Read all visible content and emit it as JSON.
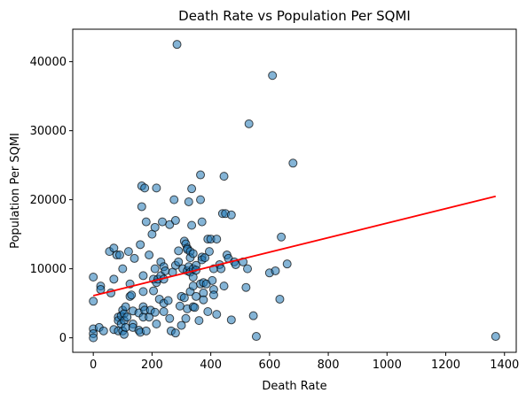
{
  "chart_data": {
    "type": "scatter",
    "title": "Death Rate vs Population Per SQMI",
    "xlabel": "Death Rate",
    "ylabel": "Population Per SQMI",
    "xlim": [
      -70,
      1440
    ],
    "ylim": [
      -2100,
      44700
    ],
    "xticks": [
      0,
      200,
      400,
      600,
      800,
      1000,
      1200,
      1400
    ],
    "yticks": [
      0,
      10000,
      20000,
      30000,
      40000
    ],
    "grid": false,
    "legend": "none",
    "colors": {
      "points": "#1f77b4",
      "point_edge": "#000000",
      "trend": "#ff0000"
    },
    "series": [
      {
        "kind": "points",
        "points": [
          [
            0,
            8800
          ],
          [
            0,
            5300
          ],
          [
            0,
            1300
          ],
          [
            0,
            600
          ],
          [
            0,
            0
          ],
          [
            20,
            1500
          ],
          [
            25,
            7500
          ],
          [
            25,
            7000
          ],
          [
            35,
            1000
          ],
          [
            55,
            12500
          ],
          [
            60,
            6500
          ],
          [
            70,
            8500
          ],
          [
            70,
            1200
          ],
          [
            70,
            13000
          ],
          [
            80,
            12000
          ],
          [
            85,
            3000
          ],
          [
            85,
            2500
          ],
          [
            85,
            1000
          ],
          [
            90,
            12000
          ],
          [
            95,
            3200
          ],
          [
            95,
            2000
          ],
          [
            100,
            10000
          ],
          [
            100,
            4000
          ],
          [
            100,
            1000
          ],
          [
            105,
            3500
          ],
          [
            105,
            2500
          ],
          [
            105,
            500
          ],
          [
            110,
            4500
          ],
          [
            110,
            1500
          ],
          [
            115,
            3000
          ],
          [
            120,
            12500
          ],
          [
            125,
            7800
          ],
          [
            125,
            6000
          ],
          [
            130,
            6200
          ],
          [
            135,
            3900
          ],
          [
            135,
            2000
          ],
          [
            135,
            1500
          ],
          [
            140,
            11500
          ],
          [
            155,
            3600
          ],
          [
            155,
            1100
          ],
          [
            160,
            13500
          ],
          [
            160,
            800
          ],
          [
            165,
            19000
          ],
          [
            165,
            22000
          ],
          [
            170,
            9000
          ],
          [
            170,
            6700
          ],
          [
            170,
            4500
          ],
          [
            170,
            3000
          ],
          [
            175,
            21700
          ],
          [
            175,
            4000
          ],
          [
            180,
            16800
          ],
          [
            180,
            1000
          ],
          [
            190,
            12000
          ],
          [
            190,
            3000
          ],
          [
            195,
            4000
          ],
          [
            200,
            15000
          ],
          [
            205,
            6800
          ],
          [
            205,
            8500
          ],
          [
            210,
            16000
          ],
          [
            210,
            10000
          ],
          [
            210,
            3700
          ],
          [
            215,
            21700
          ],
          [
            215,
            8000
          ],
          [
            215,
            2000
          ],
          [
            220,
            8500
          ],
          [
            225,
            5600
          ],
          [
            230,
            11000
          ],
          [
            230,
            9000
          ],
          [
            235,
            16800
          ],
          [
            240,
            10300
          ],
          [
            240,
            8500
          ],
          [
            240,
            5000
          ],
          [
            240,
            3800
          ],
          [
            245,
            9700
          ],
          [
            255,
            5400
          ],
          [
            260,
            16400
          ],
          [
            260,
            2800
          ],
          [
            265,
            1000
          ],
          [
            270,
            9500
          ],
          [
            275,
            20000
          ],
          [
            280,
            17000
          ],
          [
            280,
            10500
          ],
          [
            280,
            700
          ],
          [
            285,
            42500
          ],
          [
            290,
            12600
          ],
          [
            290,
            11000
          ],
          [
            295,
            4600
          ],
          [
            300,
            6000
          ],
          [
            300,
            1800
          ],
          [
            305,
            10000
          ],
          [
            310,
            14000
          ],
          [
            310,
            5800
          ],
          [
            315,
            13600
          ],
          [
            315,
            2800
          ],
          [
            320,
            13000
          ],
          [
            320,
            12800
          ],
          [
            320,
            9700
          ],
          [
            320,
            4200
          ],
          [
            325,
            19700
          ],
          [
            325,
            10300
          ],
          [
            330,
            12500
          ],
          [
            330,
            11600
          ],
          [
            330,
            9500
          ],
          [
            330,
            6700
          ],
          [
            335,
            21600
          ],
          [
            335,
            16300
          ],
          [
            340,
            12200
          ],
          [
            340,
            10000
          ],
          [
            340,
            8800
          ],
          [
            340,
            7500
          ],
          [
            340,
            4500
          ],
          [
            345,
            4400
          ],
          [
            350,
            10500
          ],
          [
            350,
            9800
          ],
          [
            350,
            6000
          ],
          [
            360,
            2500
          ],
          [
            365,
            23600
          ],
          [
            365,
            20000
          ],
          [
            365,
            7800
          ],
          [
            370,
            16800
          ],
          [
            370,
            11700
          ],
          [
            370,
            11300
          ],
          [
            375,
            8000
          ],
          [
            375,
            6500
          ],
          [
            375,
            5500
          ],
          [
            380,
            11600
          ],
          [
            385,
            7800
          ],
          [
            390,
            14300
          ],
          [
            390,
            3800
          ],
          [
            395,
            12500
          ],
          [
            400,
            14300
          ],
          [
            405,
            8300
          ],
          [
            410,
            10000
          ],
          [
            410,
            7000
          ],
          [
            410,
            6200
          ],
          [
            420,
            14300
          ],
          [
            420,
            3400
          ],
          [
            430,
            10600
          ],
          [
            435,
            10000
          ],
          [
            440,
            18000
          ],
          [
            445,
            23400
          ],
          [
            445,
            7500
          ],
          [
            450,
            18000
          ],
          [
            455,
            12000
          ],
          [
            460,
            11500
          ],
          [
            470,
            17800
          ],
          [
            470,
            2600
          ],
          [
            480,
            11000
          ],
          [
            485,
            10600
          ],
          [
            510,
            11000
          ],
          [
            520,
            7300
          ],
          [
            525,
            10000
          ],
          [
            530,
            31000
          ],
          [
            545,
            3200
          ],
          [
            555,
            200
          ],
          [
            600,
            9400
          ],
          [
            610,
            38000
          ],
          [
            620,
            9700
          ],
          [
            635,
            5600
          ],
          [
            640,
            14600
          ],
          [
            660,
            10700
          ],
          [
            680,
            25300
          ],
          [
            1370,
            200
          ]
        ]
      },
      {
        "kind": "trend",
        "endpoints": [
          [
            0,
            6100
          ],
          [
            1370,
            20500
          ]
        ]
      }
    ]
  }
}
